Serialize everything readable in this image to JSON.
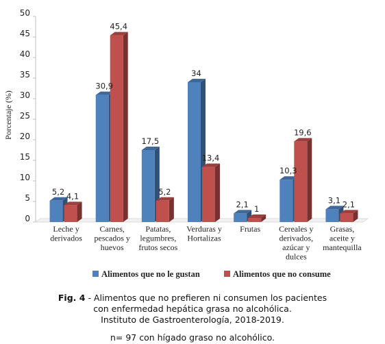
{
  "chart_data": {
    "type": "bar",
    "style": "3d-clustered-column",
    "ylabel": "Porcentaje (%)",
    "ylim": [
      0,
      50
    ],
    "yticks": [
      0,
      5,
      10,
      15,
      20,
      25,
      30,
      35,
      40,
      45,
      50
    ],
    "grid": false,
    "legend_position": "bottom",
    "categories": [
      [
        "Leche y",
        "derivados"
      ],
      [
        "Carnes,",
        "pescados y",
        "huevos"
      ],
      [
        "Patatas,",
        "legumbres,",
        "frutos secos"
      ],
      [
        "Verduras y",
        "Hortalizas"
      ],
      [
        "Frutas"
      ],
      [
        "Cereales y",
        "derivados,",
        "azúcar y",
        "dulces"
      ],
      [
        "Grasas,",
        "aceite y",
        "mantequilla"
      ]
    ],
    "series": [
      {
        "name": "Alimentos que no le gustan",
        "color": "#4F81BD",
        "values": [
          5.2,
          30.9,
          17.5,
          34,
          2.1,
          10.3,
          3.1
        ],
        "labels": [
          "5,2",
          "30,9",
          "17,5",
          "34",
          "2,1",
          "10,3",
          "3,1"
        ]
      },
      {
        "name": "Alimentos que no consume",
        "color": "#C0504D",
        "values": [
          4.1,
          45.4,
          5.2,
          13.4,
          1,
          19.6,
          2.1
        ],
        "labels": [
          "4,1",
          "45,4",
          "5,2",
          "13,4",
          "1",
          "19,6",
          "2,1"
        ]
      }
    ]
  },
  "caption": {
    "prefix": "Fig. 4",
    "line1": " - Alimentos que no prefieren ni consumen los pacientes",
    "line2": "con enfermedad hepática grasa no alcohólica.",
    "line3": "Instituto de Gastroenterología, 2018-2019."
  },
  "note": "n= 97 con hígado graso no alcohólico."
}
